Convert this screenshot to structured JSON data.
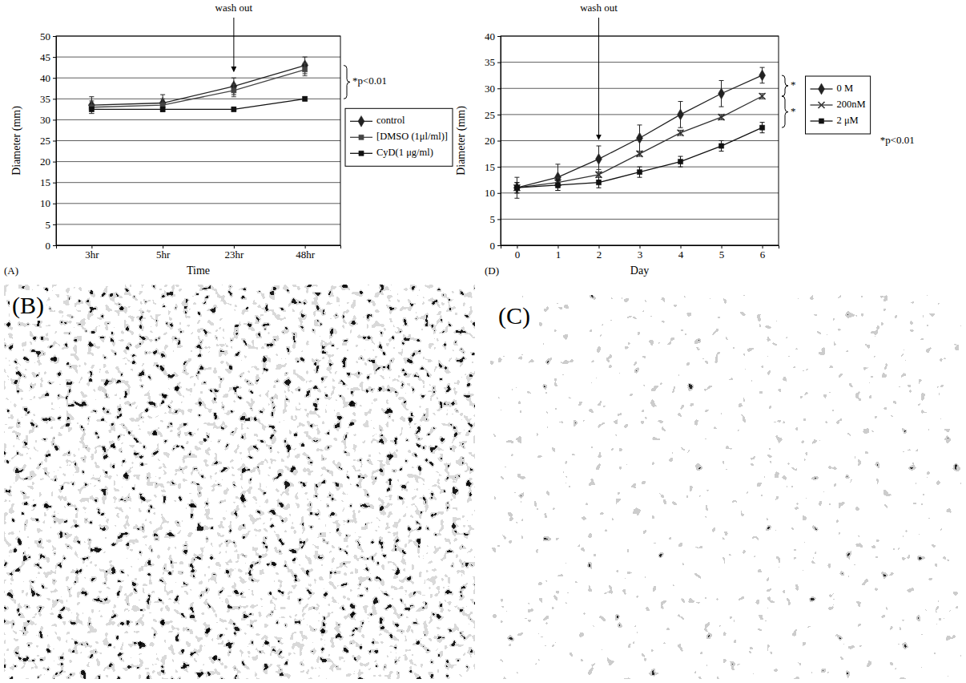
{
  "chart_data": [
    {
      "type": "line",
      "label": "(A)",
      "x_label": "Time",
      "y_label": "Diameter (mm)",
      "categories": [
        "3hr",
        "5hr",
        "23hr",
        "48hr"
      ],
      "ylim": [
        0,
        50
      ],
      "yticks": [
        0,
        5,
        10,
        15,
        20,
        25,
        30,
        35,
        40,
        45,
        50
      ],
      "grid": true,
      "legend": "right",
      "series": [
        {
          "name": "control",
          "color": "#222222",
          "marker": "diamond",
          "values": [
            33.5,
            34,
            38,
            43
          ],
          "errors": [
            2,
            2,
            2,
            2
          ]
        },
        {
          "name": "[DMSO (1μl/ml)]",
          "color": "#444444",
          "marker": "square",
          "values": [
            33,
            33.5,
            37,
            42
          ],
          "errors": [
            1.5,
            1.5,
            1.5,
            1.5
          ]
        },
        {
          "name": "CyD(1 μg/ml)",
          "color": "#111111",
          "marker": "square",
          "values": [
            32.5,
            32.5,
            32.5,
            35
          ],
          "errors": [
            0.5,
            0.5,
            0.5,
            0.5
          ]
        }
      ],
      "annotations": [
        {
          "text": "wash out",
          "x": "23hr"
        }
      ],
      "significance": [
        {
          "text": "*p<0.01",
          "series": [
            "control",
            "CyD(1 μg/ml)"
          ]
        }
      ]
    },
    {
      "type": "line",
      "label": "(D)",
      "x_label": "Day",
      "y_label": "Diameter (mm)",
      "categories": [
        "0",
        "1",
        "2",
        "3",
        "4",
        "5",
        "6"
      ],
      "ylim": [
        0,
        40
      ],
      "yticks": [
        0,
        5,
        10,
        15,
        20,
        25,
        30,
        35,
        40
      ],
      "grid": true,
      "legend": "right",
      "series": [
        {
          "name": "0 M",
          "color": "#222222",
          "marker": "diamond",
          "values": [
            11,
            13,
            16.5,
            20.5,
            25,
            29,
            32.5
          ],
          "errors": [
            2,
            2.5,
            2.5,
            2.5,
            2.5,
            2.5,
            1.5
          ]
        },
        {
          "name": "200nM",
          "color": "#333333",
          "marker": "x",
          "values": [
            11,
            12,
            13.5,
            17.5,
            21.5,
            24.5,
            28.5
          ],
          "errors": [
            1,
            1,
            1,
            0.5,
            0.5,
            0.5,
            0.5
          ]
        },
        {
          "name": "2 μM",
          "color": "#111111",
          "marker": "square",
          "values": [
            11,
            11.5,
            12,
            14,
            16,
            19,
            22.5
          ],
          "errors": [
            1,
            1,
            1,
            1,
            1,
            1,
            1
          ]
        }
      ],
      "annotations": [
        {
          "text": "wash out",
          "x": "2"
        }
      ],
      "significance": [
        {
          "text": "*",
          "series": [
            "0 M",
            "200nM"
          ]
        },
        {
          "text": "*",
          "series": [
            "200nM",
            "2 μM"
          ]
        }
      ],
      "note": "*p<0.01"
    }
  ],
  "panels": [
    {
      "label": "(B)"
    },
    {
      "label": "(C)"
    }
  ]
}
